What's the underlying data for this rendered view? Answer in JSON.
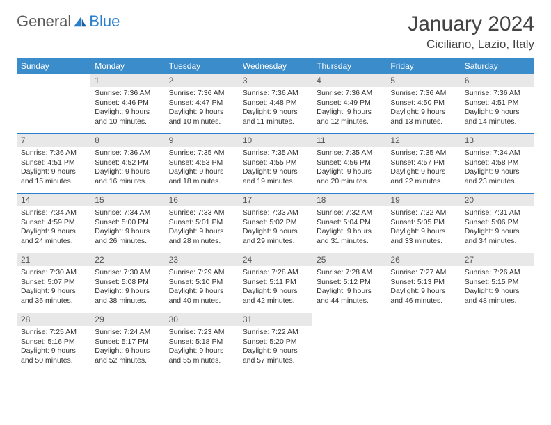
{
  "brand": {
    "part1": "General",
    "part2": "Blue"
  },
  "title": "January 2024",
  "location": "Ciciliano, Lazio, Italy",
  "colors": {
    "header_bg": "#3b8ccb",
    "header_text": "#ffffff",
    "daynum_bg": "#e8e8e8",
    "border": "#2a7fcf",
    "brand_gray": "#5a5a5a",
    "brand_blue": "#2a7fcf"
  },
  "weekdays": [
    "Sunday",
    "Monday",
    "Tuesday",
    "Wednesday",
    "Thursday",
    "Friday",
    "Saturday"
  ],
  "weeks": [
    [
      null,
      {
        "n": "1",
        "sr": "7:36 AM",
        "ss": "4:46 PM",
        "dl": "9 hours and 10 minutes."
      },
      {
        "n": "2",
        "sr": "7:36 AM",
        "ss": "4:47 PM",
        "dl": "9 hours and 10 minutes."
      },
      {
        "n": "3",
        "sr": "7:36 AM",
        "ss": "4:48 PM",
        "dl": "9 hours and 11 minutes."
      },
      {
        "n": "4",
        "sr": "7:36 AM",
        "ss": "4:49 PM",
        "dl": "9 hours and 12 minutes."
      },
      {
        "n": "5",
        "sr": "7:36 AM",
        "ss": "4:50 PM",
        "dl": "9 hours and 13 minutes."
      },
      {
        "n": "6",
        "sr": "7:36 AM",
        "ss": "4:51 PM",
        "dl": "9 hours and 14 minutes."
      }
    ],
    [
      {
        "n": "7",
        "sr": "7:36 AM",
        "ss": "4:51 PM",
        "dl": "9 hours and 15 minutes."
      },
      {
        "n": "8",
        "sr": "7:36 AM",
        "ss": "4:52 PM",
        "dl": "9 hours and 16 minutes."
      },
      {
        "n": "9",
        "sr": "7:35 AM",
        "ss": "4:53 PM",
        "dl": "9 hours and 18 minutes."
      },
      {
        "n": "10",
        "sr": "7:35 AM",
        "ss": "4:55 PM",
        "dl": "9 hours and 19 minutes."
      },
      {
        "n": "11",
        "sr": "7:35 AM",
        "ss": "4:56 PM",
        "dl": "9 hours and 20 minutes."
      },
      {
        "n": "12",
        "sr": "7:35 AM",
        "ss": "4:57 PM",
        "dl": "9 hours and 22 minutes."
      },
      {
        "n": "13",
        "sr": "7:34 AM",
        "ss": "4:58 PM",
        "dl": "9 hours and 23 minutes."
      }
    ],
    [
      {
        "n": "14",
        "sr": "7:34 AM",
        "ss": "4:59 PM",
        "dl": "9 hours and 24 minutes."
      },
      {
        "n": "15",
        "sr": "7:34 AM",
        "ss": "5:00 PM",
        "dl": "9 hours and 26 minutes."
      },
      {
        "n": "16",
        "sr": "7:33 AM",
        "ss": "5:01 PM",
        "dl": "9 hours and 28 minutes."
      },
      {
        "n": "17",
        "sr": "7:33 AM",
        "ss": "5:02 PM",
        "dl": "9 hours and 29 minutes."
      },
      {
        "n": "18",
        "sr": "7:32 AM",
        "ss": "5:04 PM",
        "dl": "9 hours and 31 minutes."
      },
      {
        "n": "19",
        "sr": "7:32 AM",
        "ss": "5:05 PM",
        "dl": "9 hours and 33 minutes."
      },
      {
        "n": "20",
        "sr": "7:31 AM",
        "ss": "5:06 PM",
        "dl": "9 hours and 34 minutes."
      }
    ],
    [
      {
        "n": "21",
        "sr": "7:30 AM",
        "ss": "5:07 PM",
        "dl": "9 hours and 36 minutes."
      },
      {
        "n": "22",
        "sr": "7:30 AM",
        "ss": "5:08 PM",
        "dl": "9 hours and 38 minutes."
      },
      {
        "n": "23",
        "sr": "7:29 AM",
        "ss": "5:10 PM",
        "dl": "9 hours and 40 minutes."
      },
      {
        "n": "24",
        "sr": "7:28 AM",
        "ss": "5:11 PM",
        "dl": "9 hours and 42 minutes."
      },
      {
        "n": "25",
        "sr": "7:28 AM",
        "ss": "5:12 PM",
        "dl": "9 hours and 44 minutes."
      },
      {
        "n": "26",
        "sr": "7:27 AM",
        "ss": "5:13 PM",
        "dl": "9 hours and 46 minutes."
      },
      {
        "n": "27",
        "sr": "7:26 AM",
        "ss": "5:15 PM",
        "dl": "9 hours and 48 minutes."
      }
    ],
    [
      {
        "n": "28",
        "sr": "7:25 AM",
        "ss": "5:16 PM",
        "dl": "9 hours and 50 minutes."
      },
      {
        "n": "29",
        "sr": "7:24 AM",
        "ss": "5:17 PM",
        "dl": "9 hours and 52 minutes."
      },
      {
        "n": "30",
        "sr": "7:23 AM",
        "ss": "5:18 PM",
        "dl": "9 hours and 55 minutes."
      },
      {
        "n": "31",
        "sr": "7:22 AM",
        "ss": "5:20 PM",
        "dl": "9 hours and 57 minutes."
      },
      null,
      null,
      null
    ]
  ],
  "labels": {
    "sunrise": "Sunrise:",
    "sunset": "Sunset:",
    "daylight": "Daylight:"
  }
}
